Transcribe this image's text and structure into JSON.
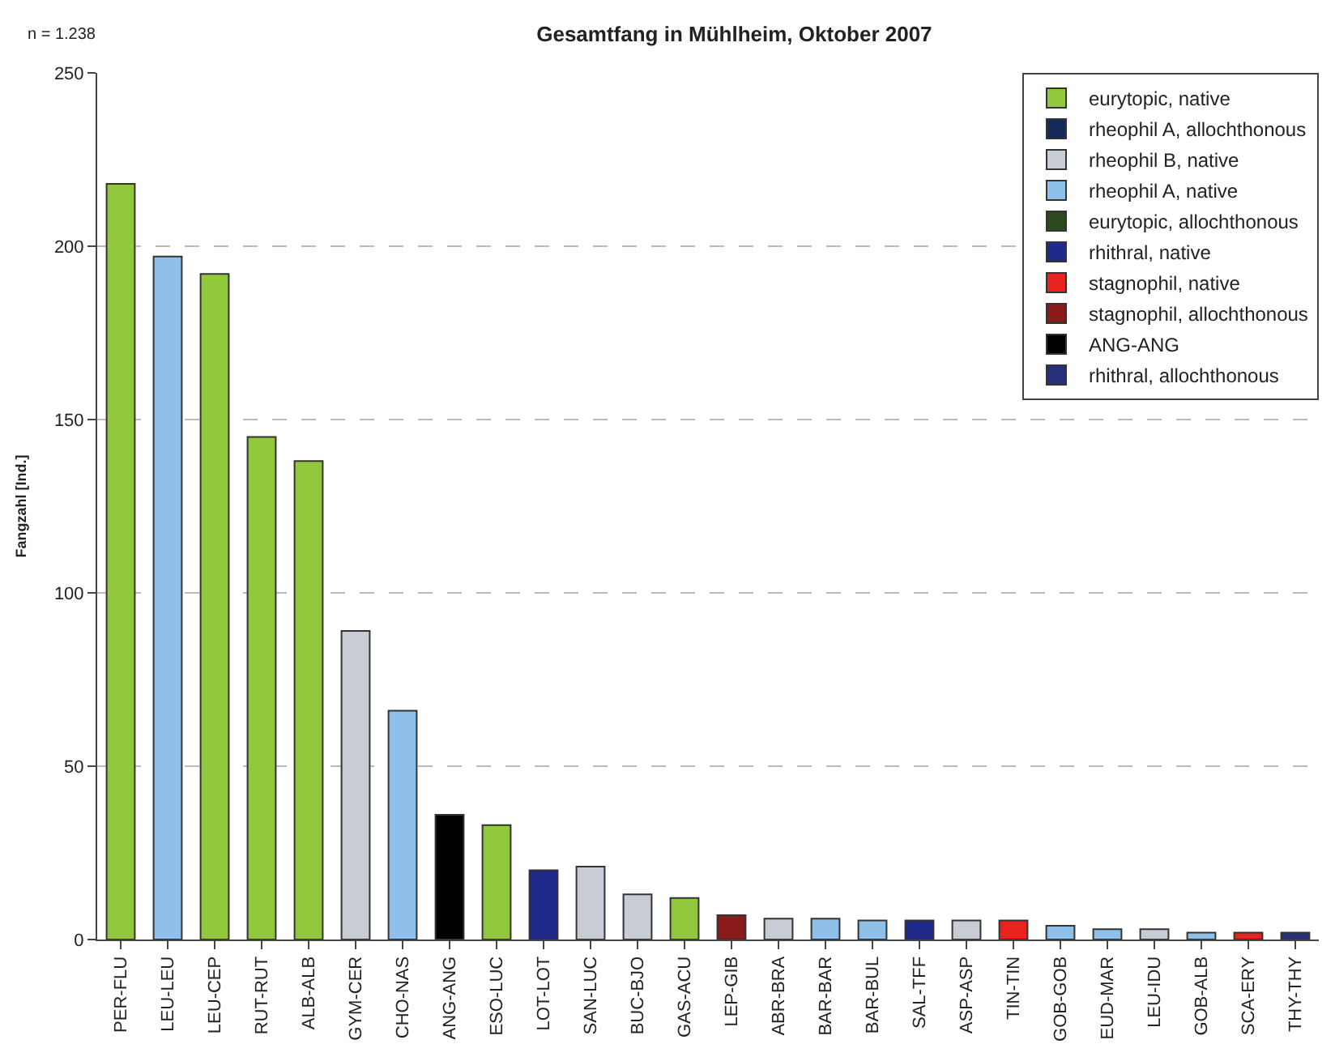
{
  "chart_data": {
    "type": "bar",
    "title": "Gesamtfang in Mühlheim, Oktober 2007",
    "ylabel": "Fangzahl [Ind.]",
    "annotations": [
      "n = 1.238"
    ],
    "categories": [
      "PER-FLU",
      "LEU-LEU",
      "LEU-CEP",
      "RUT-RUT",
      "ALB-ALB",
      "GYM-CER",
      "CHO-NAS",
      "ANG-ANG",
      "ESO-LUC",
      "LOT-LOT",
      "SAN-LUC",
      "BUC-BJO",
      "GAS-ACU",
      "LEP-GIB",
      "ABR-BRA",
      "BAR-BAR",
      "BAR-BUL",
      "SAL-TFF",
      "ASP-ASP",
      "TIN-TIN",
      "GOB-GOB",
      "EUD-MAR",
      "LEU-IDU",
      "GOB-ALB",
      "SCA-ERY",
      "THY-THY"
    ],
    "series": [
      {
        "name": "eurytopic, native",
        "color": "#92c83e",
        "values": [
          218,
          null,
          192,
          145,
          138,
          null,
          null,
          null,
          33,
          null,
          null,
          null,
          12,
          null,
          null,
          null,
          null,
          null,
          null,
          null,
          null,
          null,
          null,
          null,
          null,
          null
        ]
      },
      {
        "name": "rheophil A, allochthonous",
        "color": "#14285a",
        "values": [
          null,
          null,
          null,
          null,
          null,
          null,
          null,
          null,
          null,
          null,
          null,
          null,
          null,
          null,
          null,
          null,
          null,
          null,
          null,
          null,
          null,
          null,
          null,
          null,
          null,
          null
        ]
      },
      {
        "name": "rheophil B, native",
        "color": "#c8ccd4",
        "values": [
          null,
          null,
          null,
          null,
          null,
          89,
          null,
          null,
          null,
          null,
          21,
          13,
          null,
          null,
          6,
          null,
          null,
          null,
          5.5,
          null,
          null,
          null,
          3,
          null,
          null,
          null
        ]
      },
      {
        "name": "rheophil A, native",
        "color": "#8ec0ea",
        "values": [
          null,
          197,
          null,
          null,
          null,
          null,
          66,
          null,
          null,
          null,
          null,
          null,
          null,
          null,
          null,
          6,
          5.5,
          null,
          null,
          null,
          4,
          3,
          null,
          2,
          null,
          null
        ]
      },
      {
        "name": "eurytopic, allochthonous",
        "color": "#2d4a1e",
        "values": [
          null,
          null,
          null,
          null,
          null,
          null,
          null,
          null,
          null,
          null,
          null,
          null,
          null,
          null,
          null,
          null,
          null,
          null,
          null,
          null,
          null,
          null,
          null,
          null,
          null,
          null
        ]
      },
      {
        "name": "rhithral, native",
        "color": "#1f2a8a",
        "values": [
          null,
          null,
          null,
          null,
          null,
          null,
          null,
          null,
          null,
          20,
          null,
          null,
          null,
          null,
          null,
          null,
          null,
          5.5,
          null,
          null,
          null,
          null,
          null,
          null,
          null,
          null
        ]
      },
      {
        "name": "stagnophil, native",
        "color": "#e8231e",
        "values": [
          null,
          null,
          null,
          null,
          null,
          null,
          null,
          null,
          null,
          null,
          null,
          null,
          null,
          null,
          null,
          null,
          null,
          null,
          null,
          5.5,
          null,
          null,
          null,
          null,
          2,
          null
        ]
      },
      {
        "name": "stagnophil, allochthonous",
        "color": "#8b1a1a",
        "values": [
          null,
          null,
          null,
          null,
          null,
          null,
          null,
          null,
          null,
          null,
          null,
          null,
          null,
          7,
          null,
          null,
          null,
          null,
          null,
          null,
          null,
          null,
          null,
          null,
          null,
          null
        ]
      },
      {
        "name": "ANG-ANG",
        "color": "#000000",
        "values": [
          null,
          null,
          null,
          null,
          null,
          null,
          null,
          36,
          null,
          null,
          null,
          null,
          null,
          null,
          null,
          null,
          null,
          null,
          null,
          null,
          null,
          null,
          null,
          null,
          null,
          null
        ]
      },
      {
        "name": "rhithral, allochthonous",
        "color": "#26307a",
        "values": [
          null,
          null,
          null,
          null,
          null,
          null,
          null,
          null,
          null,
          null,
          null,
          null,
          null,
          null,
          null,
          null,
          null,
          null,
          null,
          null,
          null,
          null,
          null,
          null,
          null,
          2
        ]
      }
    ],
    "ylim": [
      0,
      250
    ],
    "yticks": [
      0,
      50,
      100,
      150,
      200,
      250
    ],
    "grid": "y",
    "legend": "top right"
  }
}
